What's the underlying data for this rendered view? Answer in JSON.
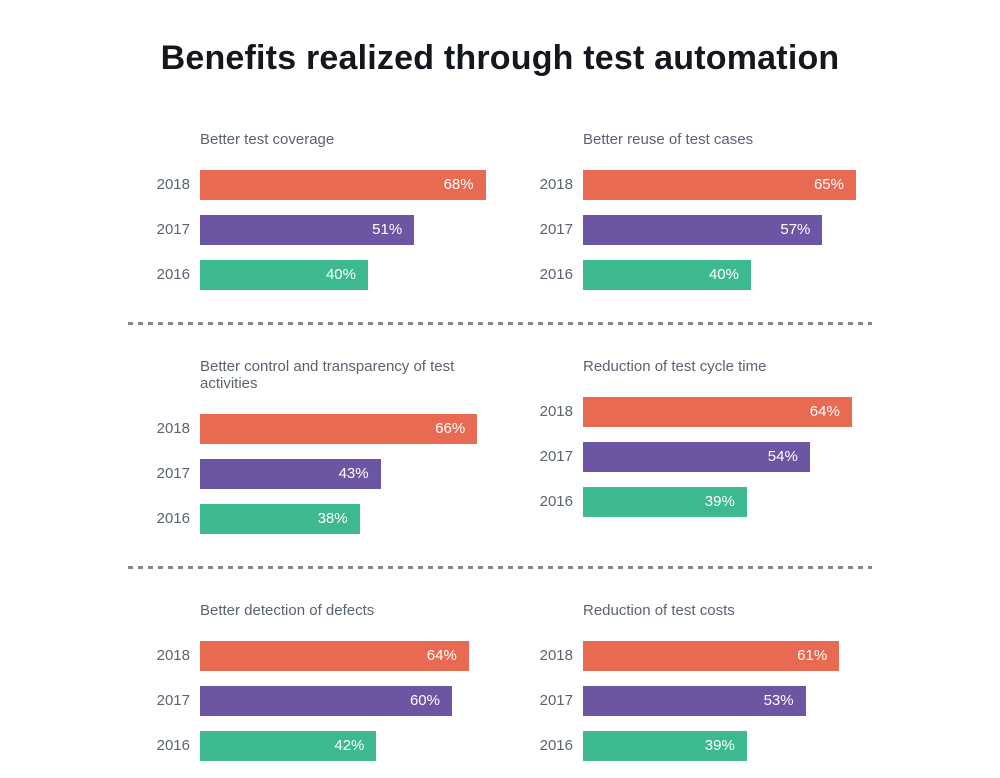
{
  "page": {
    "title": "Benefits realized through test automation"
  },
  "chart_data": {
    "type": "bar",
    "orientation": "horizontal",
    "title": "Benefits realized through test automation",
    "unit": "%",
    "categories": [
      "2018",
      "2017",
      "2016"
    ],
    "colors": [
      "#E96A52",
      "#6C55A3",
      "#3CBA8D"
    ],
    "value_range": [
      0,
      100
    ],
    "grid": false,
    "legend": "none",
    "value_labels": "inside-end",
    "charts": [
      {
        "title": "Better test coverage",
        "bars": [
          {
            "year": "2018",
            "value": 68,
            "label": "68%"
          },
          {
            "year": "2017",
            "value": 51,
            "label": "51%"
          },
          {
            "year": "2016",
            "value": 40,
            "label": "40%"
          }
        ]
      },
      {
        "title": "Better reuse of test cases",
        "bars": [
          {
            "year": "2018",
            "value": 65,
            "label": "65%"
          },
          {
            "year": "2017",
            "value": 57,
            "label": "57%"
          },
          {
            "year": "2016",
            "value": 40,
            "label": "40%"
          }
        ]
      },
      {
        "title": "Better control and transparency of test activities",
        "bars": [
          {
            "year": "2018",
            "value": 66,
            "label": "66%"
          },
          {
            "year": "2017",
            "value": 43,
            "label": "43%"
          },
          {
            "year": "2016",
            "value": 38,
            "label": "38%"
          }
        ]
      },
      {
        "title": "Reduction of test cycle time",
        "bars": [
          {
            "year": "2018",
            "value": 64,
            "label": "64%"
          },
          {
            "year": "2017",
            "value": 54,
            "label": "54%"
          },
          {
            "year": "2016",
            "value": 39,
            "label": "39%"
          }
        ]
      },
      {
        "title": "Better detection of defects",
        "bars": [
          {
            "year": "2018",
            "value": 64,
            "label": "64%"
          },
          {
            "year": "2017",
            "value": 60,
            "label": "60%"
          },
          {
            "year": "2016",
            "value": 42,
            "label": "42%"
          }
        ]
      },
      {
        "title": "Reduction of test costs",
        "bars": [
          {
            "year": "2018",
            "value": 61,
            "label": "61%"
          },
          {
            "year": "2017",
            "value": 53,
            "label": "53%"
          },
          {
            "year": "2016",
            "value": 39,
            "label": "39%"
          }
        ]
      }
    ]
  }
}
